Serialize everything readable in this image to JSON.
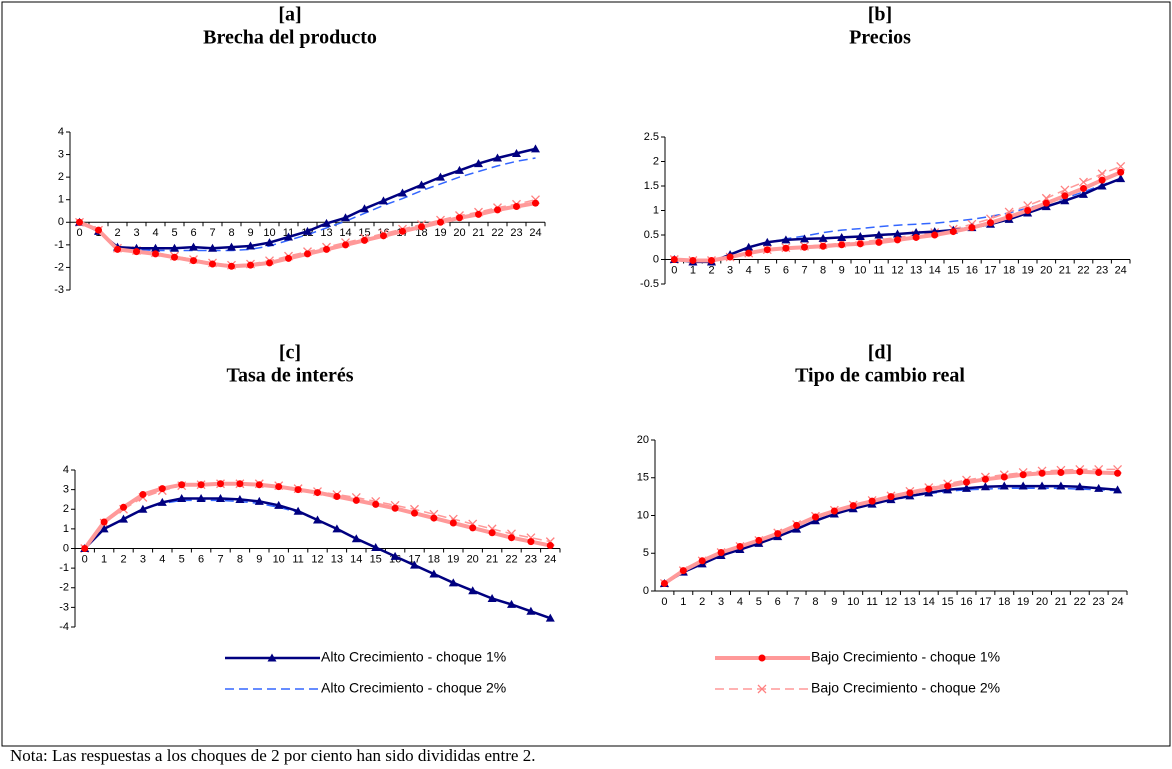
{
  "chart_data": [
    {
      "type": "line",
      "label": "[a]",
      "title": "Brecha del producto",
      "x": [
        0,
        1,
        2,
        3,
        4,
        5,
        6,
        7,
        8,
        9,
        10,
        11,
        12,
        13,
        14,
        15,
        16,
        17,
        18,
        19,
        20,
        21,
        22,
        23,
        24
      ],
      "ylim": [
        -3,
        4
      ],
      "yticks": [
        -3,
        -2,
        -1,
        0,
        1,
        2,
        3,
        4
      ],
      "series": [
        {
          "values": [
            0,
            -0.4,
            -1.1,
            -1.15,
            -1.15,
            -1.15,
            -1.1,
            -1.15,
            -1.1,
            -1.05,
            -0.9,
            -0.65,
            -0.4,
            -0.05,
            0.2,
            0.6,
            0.95,
            1.3,
            1.65,
            2.0,
            2.3,
            2.6,
            2.85,
            3.05,
            3.25
          ]
        },
        {
          "values": [
            0,
            -0.35,
            -1.2,
            -1.3,
            -1.4,
            -1.55,
            -1.7,
            -1.85,
            -1.95,
            -1.9,
            -1.8,
            -1.6,
            -1.4,
            -1.2,
            -1.0,
            -0.8,
            -0.6,
            -0.4,
            -0.2,
            0.0,
            0.2,
            0.35,
            0.55,
            0.7,
            0.85
          ]
        },
        {
          "values": [
            0,
            -0.4,
            -1.1,
            -1.2,
            -1.25,
            -1.25,
            -1.25,
            -1.25,
            -1.25,
            -1.2,
            -1.05,
            -0.8,
            -0.55,
            -0.25,
            0.05,
            0.4,
            0.75,
            1.05,
            1.4,
            1.7,
            2.0,
            2.25,
            2.5,
            2.7,
            2.85
          ]
        },
        {
          "values": [
            0,
            -0.35,
            -1.15,
            -1.25,
            -1.35,
            -1.5,
            -1.65,
            -1.8,
            -1.9,
            -1.85,
            -1.7,
            -1.5,
            -1.3,
            -1.1,
            -0.9,
            -0.7,
            -0.5,
            -0.3,
            -0.1,
            0.1,
            0.3,
            0.45,
            0.65,
            0.8,
            1.0
          ]
        }
      ]
    },
    {
      "type": "line",
      "label": "[b]",
      "title": "Precios",
      "x": [
        0,
        1,
        2,
        3,
        4,
        5,
        6,
        7,
        8,
        9,
        10,
        11,
        12,
        13,
        14,
        15,
        16,
        17,
        18,
        19,
        20,
        21,
        22,
        23,
        24
      ],
      "ylim": [
        -0.5,
        2.5
      ],
      "yticks": [
        -0.5,
        0,
        0.5,
        1,
        1.5,
        2,
        2.5
      ],
      "series": [
        {
          "values": [
            0,
            -0.05,
            -0.05,
            0.1,
            0.25,
            0.35,
            0.4,
            0.42,
            0.43,
            0.45,
            0.47,
            0.5,
            0.52,
            0.55,
            0.57,
            0.6,
            0.65,
            0.72,
            0.82,
            0.95,
            1.08,
            1.2,
            1.33,
            1.5,
            1.65
          ]
        },
        {
          "values": [
            0,
            -0.02,
            -0.02,
            0.05,
            0.13,
            0.2,
            0.23,
            0.25,
            0.27,
            0.3,
            0.32,
            0.35,
            0.4,
            0.45,
            0.5,
            0.57,
            0.65,
            0.75,
            0.87,
            1.0,
            1.15,
            1.3,
            1.45,
            1.62,
            1.78
          ]
        },
        {
          "values": [
            0,
            -0.05,
            -0.05,
            0.1,
            0.25,
            0.35,
            0.42,
            0.48,
            0.55,
            0.6,
            0.63,
            0.67,
            0.7,
            0.72,
            0.74,
            0.78,
            0.82,
            0.88,
            0.95,
            1.05,
            1.15,
            1.25,
            1.38,
            1.52,
            1.65
          ]
        },
        {
          "values": [
            0,
            -0.02,
            -0.02,
            0.05,
            0.13,
            0.2,
            0.24,
            0.27,
            0.3,
            0.33,
            0.36,
            0.4,
            0.45,
            0.5,
            0.55,
            0.62,
            0.72,
            0.83,
            0.97,
            1.1,
            1.25,
            1.42,
            1.58,
            1.75,
            1.9
          ]
        }
      ]
    },
    {
      "type": "line",
      "label": "[c]",
      "title": "Tasa de interés",
      "x": [
        0,
        1,
        2,
        3,
        4,
        5,
        6,
        7,
        8,
        9,
        10,
        11,
        12,
        13,
        14,
        15,
        16,
        17,
        18,
        19,
        20,
        21,
        22,
        23,
        24
      ],
      "ylim": [
        -4,
        4
      ],
      "yticks": [
        -4,
        -3,
        -2,
        -1,
        0,
        1,
        2,
        3,
        4
      ],
      "series": [
        {
          "values": [
            0,
            1.0,
            1.5,
            2.0,
            2.35,
            2.55,
            2.55,
            2.55,
            2.5,
            2.4,
            2.2,
            1.9,
            1.45,
            1.0,
            0.5,
            0.05,
            -0.4,
            -0.85,
            -1.3,
            -1.75,
            -2.15,
            -2.55,
            -2.85,
            -3.2,
            -3.55
          ]
        },
        {
          "values": [
            0,
            1.35,
            2.1,
            2.75,
            3.05,
            3.25,
            3.25,
            3.3,
            3.3,
            3.25,
            3.15,
            3.0,
            2.85,
            2.65,
            2.45,
            2.25,
            2.05,
            1.8,
            1.55,
            1.3,
            1.05,
            0.8,
            0.55,
            0.35,
            0.15
          ]
        },
        {
          "values": [
            0,
            1.0,
            1.5,
            2.0,
            2.3,
            2.45,
            2.45,
            2.45,
            2.4,
            2.3,
            2.1,
            1.85,
            1.45,
            1.0,
            0.5,
            0.05,
            -0.4,
            -0.85,
            -1.3,
            -1.75,
            -2.15,
            -2.55,
            -2.85,
            -3.2,
            -3.55
          ]
        },
        {
          "values": [
            0,
            1.3,
            2.0,
            2.6,
            2.95,
            3.2,
            3.25,
            3.3,
            3.3,
            3.3,
            3.2,
            3.05,
            2.9,
            2.75,
            2.6,
            2.4,
            2.2,
            2.0,
            1.75,
            1.5,
            1.25,
            1.0,
            0.75,
            0.55,
            0.35
          ]
        }
      ]
    },
    {
      "type": "line",
      "label": "[d]",
      "title": "Tipo de cambio real",
      "x": [
        0,
        1,
        2,
        3,
        4,
        5,
        6,
        7,
        8,
        9,
        10,
        11,
        12,
        13,
        14,
        15,
        16,
        17,
        18,
        19,
        20,
        21,
        22,
        23,
        24
      ],
      "ylim": [
        0,
        20
      ],
      "yticks": [
        0,
        5,
        10,
        15,
        20
      ],
      "series": [
        {
          "values": [
            1,
            2.5,
            3.6,
            4.7,
            5.5,
            6.3,
            7.2,
            8.2,
            9.3,
            10.2,
            10.9,
            11.5,
            12.1,
            12.6,
            13.0,
            13.4,
            13.6,
            13.8,
            13.9,
            13.9,
            13.9,
            13.9,
            13.8,
            13.6,
            13.4
          ]
        },
        {
          "values": [
            1,
            2.7,
            4.0,
            5.1,
            5.9,
            6.7,
            7.6,
            8.7,
            9.8,
            10.6,
            11.3,
            11.9,
            12.5,
            13.0,
            13.5,
            13.9,
            14.4,
            14.8,
            15.1,
            15.4,
            15.6,
            15.7,
            15.8,
            15.7,
            15.6
          ]
        },
        {
          "values": [
            1,
            2.5,
            3.7,
            4.8,
            5.6,
            6.4,
            7.3,
            8.3,
            9.3,
            10.2,
            10.9,
            11.5,
            12.0,
            12.5,
            12.9,
            13.2,
            13.4,
            13.5,
            13.6,
            13.6,
            13.6,
            13.6,
            13.5,
            13.4,
            13.3
          ]
        },
        {
          "values": [
            1,
            2.7,
            4.0,
            5.1,
            5.9,
            6.7,
            7.7,
            8.8,
            9.9,
            10.7,
            11.4,
            12.0,
            12.6,
            13.2,
            13.7,
            14.2,
            14.7,
            15.1,
            15.4,
            15.7,
            15.9,
            16.0,
            16.1,
            16.1,
            16.1
          ]
        }
      ]
    }
  ],
  "legend": [
    {
      "name": "Alto Crecimiento - choque 1%",
      "color": "#000080",
      "marker": "triangle",
      "marker_color": "#000080",
      "dash": "solid",
      "width": 2.5
    },
    {
      "name": "Bajo Crecimiento - choque 1%",
      "color": "#ff9999",
      "marker": "circle",
      "marker_color": "#ff0000",
      "dash": "solid",
      "width": 4
    },
    {
      "name": "Alto Crecimiento - choque 2%",
      "color": "#3366ff",
      "marker": "none",
      "marker_color": "#3366ff",
      "dash": "dashed",
      "width": 1.5
    },
    {
      "name": "Bajo Crecimiento - choque 2%",
      "color": "#ff9999",
      "marker": "x",
      "marker_color": "#ff8080",
      "dash": "dashed",
      "width": 1.5
    }
  ],
  "note": "Nota: Las respuestas a los choques de 2 por ciento han sido divididas entre 2."
}
